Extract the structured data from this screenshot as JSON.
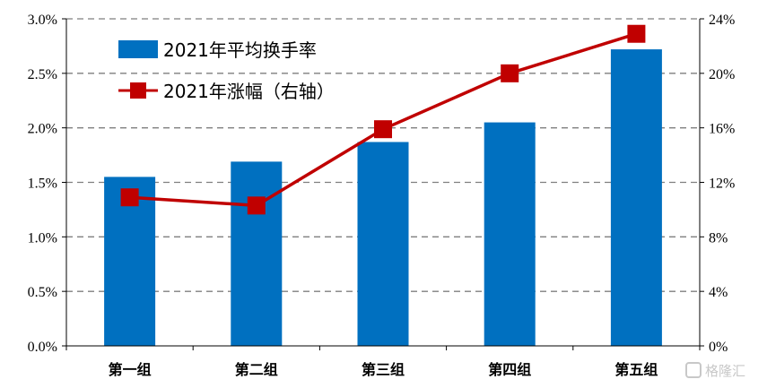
{
  "chart_data": {
    "type": "bar+line",
    "categories": [
      "第一组",
      "第二组",
      "第三组",
      "第四组",
      "第五组"
    ],
    "series": [
      {
        "name": "2021年平均换手率",
        "type": "bar",
        "axis": "left",
        "values": [
          1.55,
          1.69,
          1.87,
          2.05,
          2.72
        ],
        "unit": "%",
        "color": "#0070c0"
      },
      {
        "name": "2021年涨幅（右轴）",
        "type": "line",
        "axis": "right",
        "values": [
          10.9,
          10.3,
          15.9,
          20.0,
          22.9
        ],
        "unit": "%",
        "color": "#c00000"
      }
    ],
    "y_left": {
      "ylim": [
        0,
        3.0
      ],
      "ticks": [
        "0.0%",
        "0.5%",
        "1.0%",
        "1.5%",
        "2.0%",
        "2.5%",
        "3.0%"
      ]
    },
    "y_right": {
      "ylim": [
        0,
        24
      ],
      "ticks": [
        "0%",
        "4%",
        "8%",
        "12%",
        "16%",
        "20%",
        "24%"
      ]
    },
    "grid": "dashed horizontal",
    "legend_position": "top-left"
  },
  "watermark": {
    "text": "格隆汇"
  }
}
